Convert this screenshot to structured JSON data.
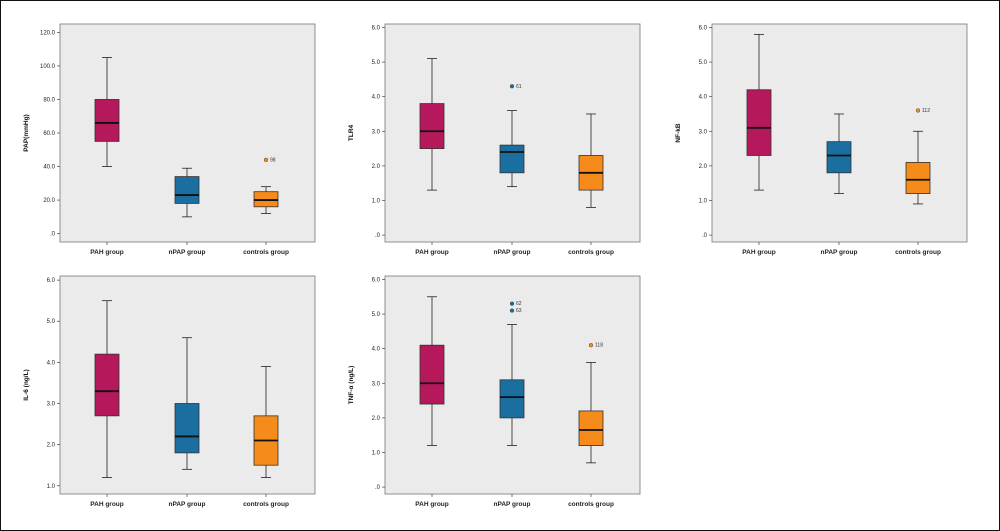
{
  "chart_data": [
    {
      "type": "box",
      "ylabel": "PAP(mmHg)",
      "ylim": [
        -5,
        125
      ],
      "yticks": [
        0,
        20,
        40,
        60,
        80,
        100,
        120
      ],
      "ytick_labels": [
        ".0",
        "20.0",
        "40.0",
        "60.0",
        "80.0",
        "100.0",
        "120.0"
      ],
      "categories": [
        "PAH group",
        "nPAP group",
        "controls group"
      ],
      "colors": [
        "#b5195b",
        "#1b6fa0",
        "#f58b1b"
      ],
      "boxes": [
        {
          "min": 40,
          "q1": 55,
          "median": 66,
          "q3": 80,
          "max": 105,
          "outliers": []
        },
        {
          "min": 10,
          "q1": 18,
          "median": 23,
          "q3": 34,
          "max": 39,
          "outliers": []
        },
        {
          "min": 12,
          "q1": 16,
          "median": 20,
          "q3": 25,
          "max": 28,
          "outliers": [
            {
              "value": 44,
              "label": "98"
            }
          ]
        }
      ]
    },
    {
      "type": "box",
      "ylabel": "TLR4",
      "ylim": [
        -0.2,
        6.1
      ],
      "yticks": [
        0,
        1,
        2,
        3,
        4,
        5,
        6
      ],
      "ytick_labels": [
        ".0",
        "1.0",
        "2.0",
        "3.0",
        "4.0",
        "5.0",
        "6.0"
      ],
      "categories": [
        "PAH group",
        "nPAP group",
        "controls group"
      ],
      "colors": [
        "#b5195b",
        "#1b6fa0",
        "#f58b1b"
      ],
      "boxes": [
        {
          "min": 1.3,
          "q1": 2.5,
          "median": 3.0,
          "q3": 3.8,
          "max": 5.1,
          "outliers": []
        },
        {
          "min": 1.4,
          "q1": 1.8,
          "median": 2.4,
          "q3": 2.6,
          "max": 3.6,
          "outliers": [
            {
              "value": 4.3,
              "label": "61"
            }
          ]
        },
        {
          "min": 0.8,
          "q1": 1.3,
          "median": 1.8,
          "q3": 2.3,
          "max": 3.5,
          "outliers": []
        }
      ]
    },
    {
      "type": "box",
      "ylabel": "NF-kB",
      "ylim": [
        -0.2,
        6.1
      ],
      "yticks": [
        0,
        1,
        2,
        3,
        4,
        5,
        6
      ],
      "ytick_labels": [
        ".0",
        "1.0",
        "2.0",
        "3.0",
        "4.0",
        "5.0",
        "6.0"
      ],
      "categories": [
        "PAH group",
        "nPAP group",
        "controls group"
      ],
      "colors": [
        "#b5195b",
        "#1b6fa0",
        "#f58b1b"
      ],
      "boxes": [
        {
          "min": 1.3,
          "q1": 2.3,
          "median": 3.1,
          "q3": 4.2,
          "max": 5.8,
          "outliers": []
        },
        {
          "min": 1.2,
          "q1": 1.8,
          "median": 2.3,
          "q3": 2.7,
          "max": 3.5,
          "outliers": []
        },
        {
          "min": 0.9,
          "q1": 1.2,
          "median": 1.6,
          "q3": 2.1,
          "max": 3.0,
          "outliers": [
            {
              "value": 3.6,
              "label": "112"
            }
          ]
        }
      ]
    },
    {
      "type": "box",
      "ylabel": "IL-6 (ng/L)",
      "ylim": [
        0.8,
        6.1
      ],
      "yticks": [
        1,
        2,
        3,
        4,
        5,
        6
      ],
      "ytick_labels": [
        "1.0",
        "2.0",
        "3.0",
        "4.0",
        "5.0",
        "6.0"
      ],
      "categories": [
        "PAH group",
        "nPAP group",
        "controls group"
      ],
      "colors": [
        "#b5195b",
        "#1b6fa0",
        "#f58b1b"
      ],
      "boxes": [
        {
          "min": 1.2,
          "q1": 2.7,
          "median": 3.3,
          "q3": 4.2,
          "max": 5.5,
          "outliers": []
        },
        {
          "min": 1.4,
          "q1": 1.8,
          "median": 2.2,
          "q3": 3.0,
          "max": 4.6,
          "outliers": []
        },
        {
          "min": 1.2,
          "q1": 1.5,
          "median": 2.1,
          "q3": 2.7,
          "max": 3.9,
          "outliers": []
        }
      ]
    },
    {
      "type": "box",
      "ylabel": "TNF-α (ng/L)",
      "ylim": [
        -0.2,
        6.1
      ],
      "yticks": [
        0,
        1,
        2,
        3,
        4,
        5,
        6
      ],
      "ytick_labels": [
        ".0",
        "1.0",
        "2.0",
        "3.0",
        "4.0",
        "5.0",
        "6.0"
      ],
      "categories": [
        "PAH group",
        "nPAP group",
        "controls group"
      ],
      "colors": [
        "#b5195b",
        "#1b6fa0",
        "#f58b1b"
      ],
      "boxes": [
        {
          "min": 1.2,
          "q1": 2.4,
          "median": 3.0,
          "q3": 4.1,
          "max": 5.5,
          "outliers": []
        },
        {
          "min": 1.2,
          "q1": 2.0,
          "median": 2.6,
          "q3": 3.1,
          "max": 4.7,
          "outliers": [
            {
              "value": 5.1,
              "label": "63"
            },
            {
              "value": 5.3,
              "label": "62"
            }
          ]
        },
        {
          "min": 0.7,
          "q1": 1.2,
          "median": 1.65,
          "q3": 2.2,
          "max": 3.6,
          "outliers": [
            {
              "value": 4.1,
              "label": "118"
            }
          ]
        }
      ]
    }
  ]
}
